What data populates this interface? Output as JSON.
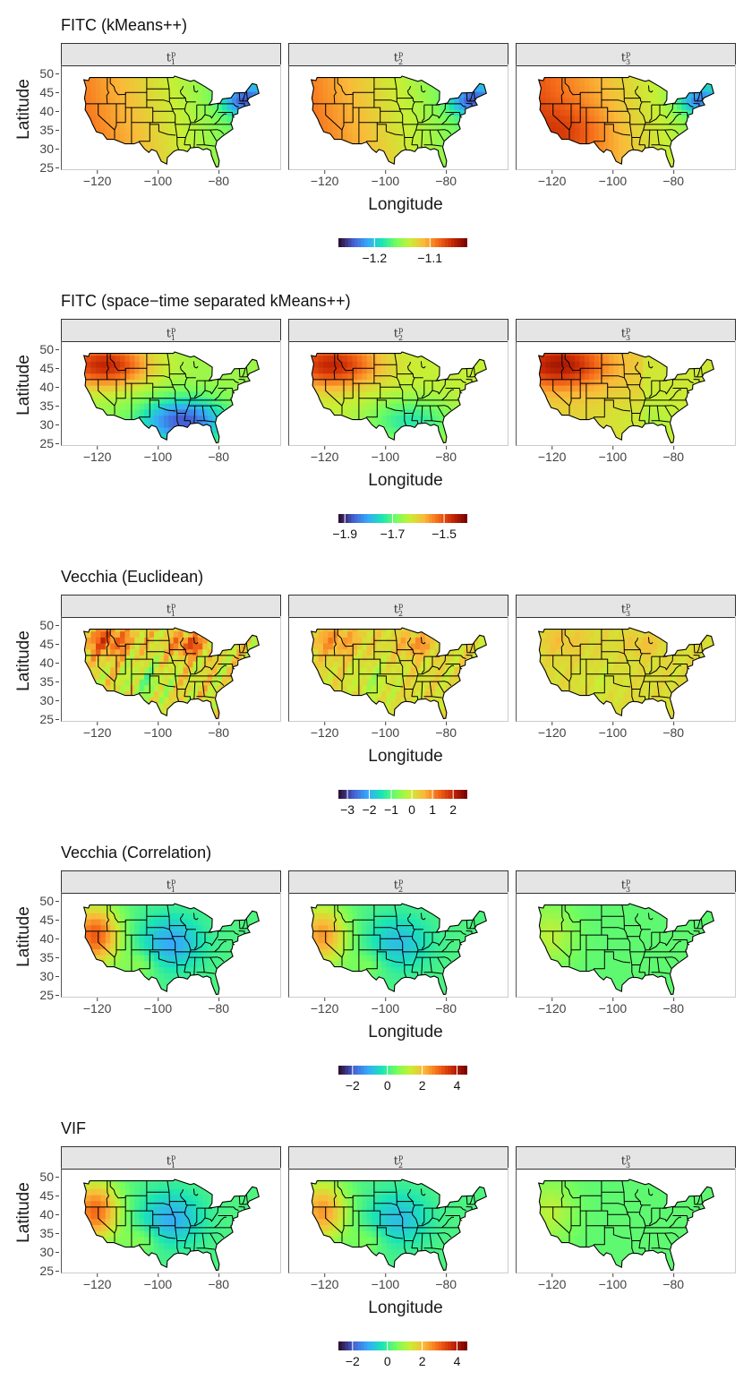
{
  "x_axis_label": "Longitude",
  "y_axis_label": "Latitude",
  "facets": [
    {
      "label_base": "t",
      "sub": "1",
      "sup": "p"
    },
    {
      "label_base": "t",
      "sub": "2",
      "sup": "p"
    },
    {
      "label_base": "t",
      "sub": "3",
      "sup": "p"
    }
  ],
  "x_ticks": [
    "−120",
    "−100",
    "−80"
  ],
  "y_ticks": [
    "50",
    "45",
    "40",
    "35",
    "30",
    "25"
  ],
  "colors": {
    "palette": [
      "#30123b",
      "#4662d7",
      "#36aaf9",
      "#1ae4b6",
      "#72fe5e",
      "#c8ef34",
      "#faba39",
      "#f66b19",
      "#ca2a04",
      "#7a0403"
    ],
    "state_border": "#000000"
  },
  "blocks": [
    {
      "title": "FITC (kMeans++)",
      "legend_ticks": [
        "−1.2",
        "−1.1"
      ],
      "pattern": "fitc_kmeans"
    },
    {
      "title": "FITC (space−time separated kMeans++)",
      "legend_ticks": [
        "−1.9",
        "−1.7",
        "−1.5"
      ],
      "pattern": "fitc_stsep"
    },
    {
      "title": "Vecchia (Euclidean)",
      "legend_ticks": [
        "−3",
        "−2",
        "−1",
        "0",
        "1",
        "2"
      ],
      "pattern": "vecchia_euc"
    },
    {
      "title": "Vecchia (Correlation)",
      "legend_ticks": [
        "−2",
        "0",
        "2",
        "4"
      ],
      "pattern": "vecchia_corr"
    },
    {
      "title": "VIF",
      "legend_ticks": [
        "−2",
        "0",
        "2",
        "4"
      ],
      "pattern": "vif"
    }
  ]
}
